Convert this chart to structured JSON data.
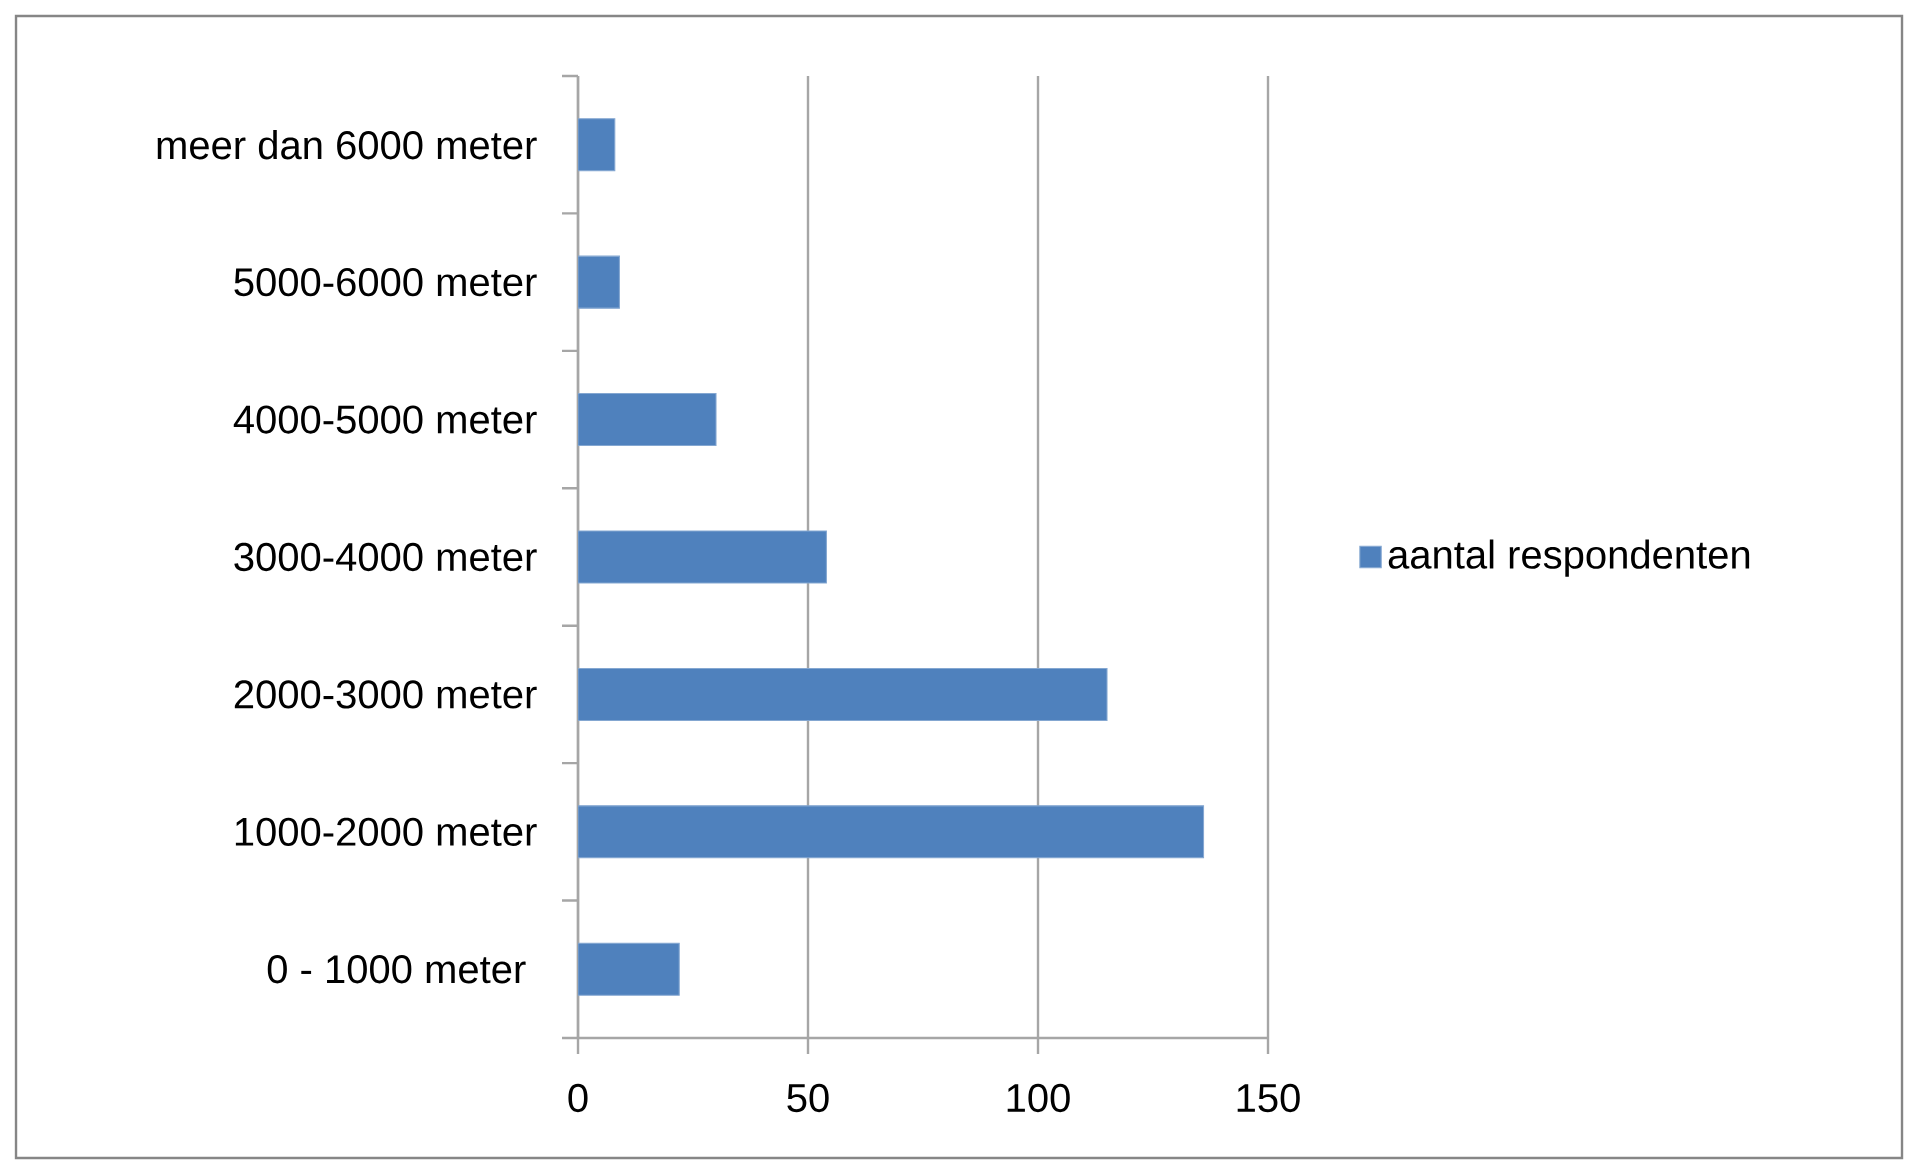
{
  "chart_data": {
    "type": "bar",
    "orientation": "horizontal",
    "categories": [
      "meer dan 6000 meter",
      "5000-6000 meter",
      "4000-5000 meter",
      "3000-4000 meter",
      "2000-3000 meter",
      "1000-2000 meter",
      "0 - 1000 meter "
    ],
    "series": [
      {
        "name": "aantal respondenten",
        "color": "#4f81bd",
        "values": [
          8,
          9,
          30,
          54,
          115,
          136,
          22
        ]
      }
    ],
    "xlim": [
      0,
      150
    ],
    "xticks": [
      0,
      50,
      100,
      150
    ],
    "grid": "x",
    "legend": "right"
  }
}
